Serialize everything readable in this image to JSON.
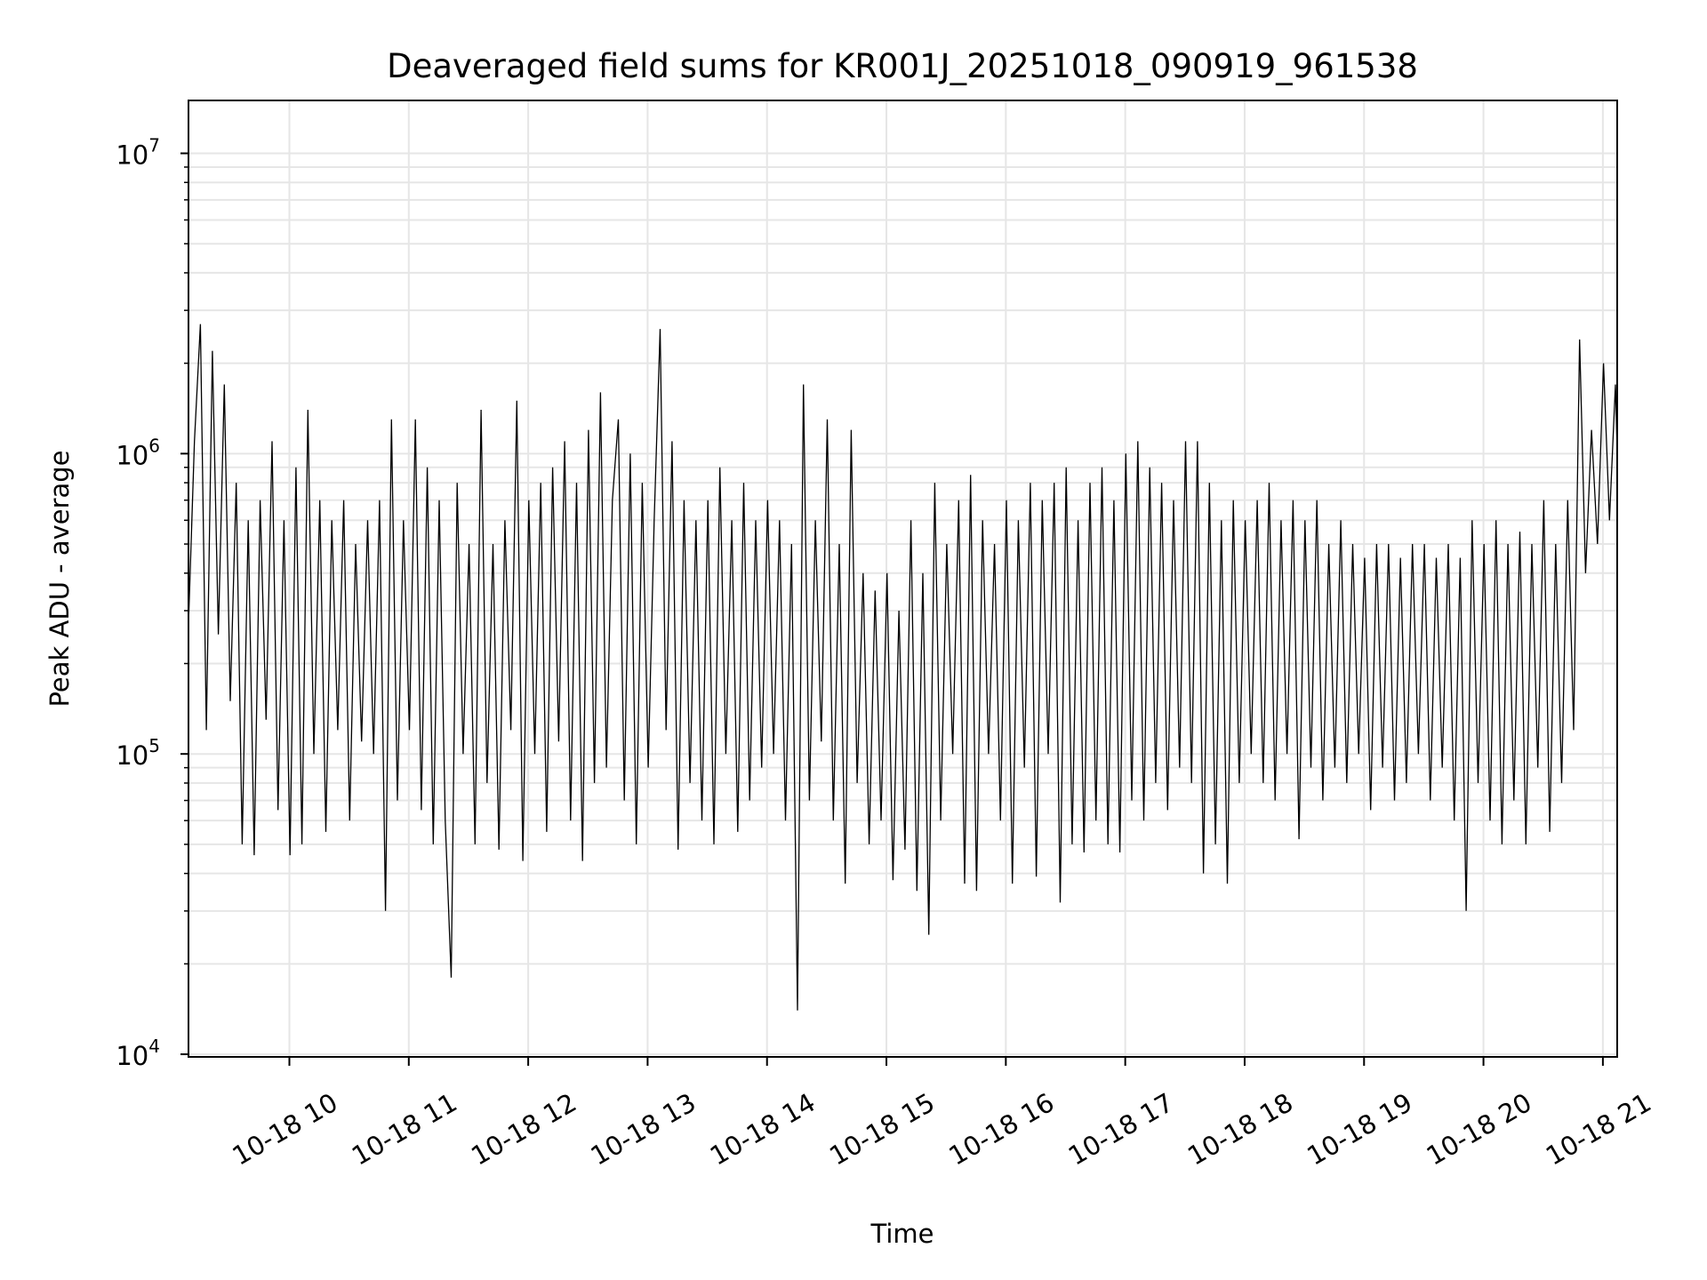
{
  "chart_data": {
    "type": "line",
    "title": "Deaveraged field sums for KR001J_20251018_090919_961538",
    "xlabel": "Time",
    "ylabel": "Peak ADU - average",
    "yscale": "log",
    "ylim": [
      9800,
      15000000
    ],
    "xlim_hours": [
      9.155,
      21.12
    ],
    "yticks": [
      {
        "exp": "4",
        "value": 10000
      },
      {
        "exp": "5",
        "value": 100000
      },
      {
        "exp": "6",
        "value": 1000000
      },
      {
        "exp": "7",
        "value": 10000000
      }
    ],
    "xticks": [
      {
        "hour": 10,
        "label": "10-18 10"
      },
      {
        "hour": 11,
        "label": "10-18 11"
      },
      {
        "hour": 12,
        "label": "10-18 12"
      },
      {
        "hour": 13,
        "label": "10-18 13"
      },
      {
        "hour": 14,
        "label": "10-18 14"
      },
      {
        "hour": 15,
        "label": "10-18 15"
      },
      {
        "hour": 16,
        "label": "10-18 16"
      },
      {
        "hour": 17,
        "label": "10-18 17"
      },
      {
        "hour": 18,
        "label": "10-18 18"
      },
      {
        "hour": 19,
        "label": "10-18 19"
      },
      {
        "hour": 20,
        "label": "10-18 20"
      },
      {
        "hour": 21,
        "label": "10-18 21"
      }
    ],
    "grid": true,
    "line_color": "#000000",
    "grid_color": "#e6e6e6",
    "series": [
      {
        "name": "deaveraged sum",
        "start_hour": 9.155,
        "step_minutes": 3,
        "values": [
          270000.0,
          1100000.0,
          2700000.0,
          120000.0,
          2200000.0,
          250000.0,
          1700000.0,
          150000.0,
          800000.0,
          50000.0,
          600000.0,
          46000.0,
          700000.0,
          130000.0,
          1100000.0,
          65000.0,
          600000.0,
          46000.0,
          900000.0,
          50000.0,
          1400000.0,
          100000.0,
          700000.0,
          55000.0,
          600000.0,
          120000.0,
          700000.0,
          60000.0,
          500000.0,
          110000.0,
          600000.0,
          100000.0,
          700000.0,
          30000.0,
          1300000.0,
          70000.0,
          600000.0,
          120000.0,
          1300000.0,
          65000.0,
          900000.0,
          50000.0,
          700000.0,
          60000.0,
          18000.0,
          800000.0,
          100000.0,
          500000.0,
          50000.0,
          1400000.0,
          80000.0,
          500000.0,
          48000.0,
          600000.0,
          120000.0,
          1500000.0,
          44000.0,
          700000.0,
          100000.0,
          800000.0,
          55000.0,
          900000.0,
          110000.0,
          1100000.0,
          60000.0,
          800000.0,
          44000.0,
          1200000.0,
          80000.0,
          1600000.0,
          90000.0,
          700000.0,
          1300000.0,
          70000.0,
          1000000.0,
          50000.0,
          800000.0,
          90000.0,
          600000.0,
          2600000.0,
          120000.0,
          1100000.0,
          48000.0,
          700000.0,
          80000.0,
          600000.0,
          60000.0,
          700000.0,
          50000.0,
          900000.0,
          100000.0,
          600000.0,
          55000.0,
          800000.0,
          70000.0,
          600000.0,
          90000.0,
          700000.0,
          100000.0,
          600000.0,
          60000.0,
          500000.0,
          14000.0,
          1700000.0,
          70000.0,
          600000.0,
          110000.0,
          1300000.0,
          60000.0,
          500000.0,
          37000.0,
          1200000.0,
          80000.0,
          400000.0,
          50000.0,
          350000.0,
          60000.0,
          400000.0,
          38000.0,
          300000.0,
          48000.0,
          600000.0,
          35000.0,
          400000.0,
          25000.0,
          800000.0,
          60000.0,
          500000.0,
          100000.0,
          700000.0,
          37000.0,
          850000.0,
          35000.0,
          600000.0,
          100000.0,
          500000.0,
          60000.0,
          700000.0,
          37000.0,
          600000.0,
          90000.0,
          800000.0,
          39000.0,
          700000.0,
          100000.0,
          800000.0,
          32000.0,
          900000.0,
          50000.0,
          600000.0,
          47000.0,
          800000.0,
          60000.0,
          900000.0,
          50000.0,
          700000.0,
          47000.0,
          1000000.0,
          70000.0,
          1100000.0,
          60000.0,
          900000.0,
          80000.0,
          800000.0,
          65000.0,
          700000.0,
          90000.0,
          1100000.0,
          80000.0,
          1100000.0,
          40000.0,
          800000.0,
          50000.0,
          600000.0,
          37000.0,
          700000.0,
          80000.0,
          600000.0,
          100000.0,
          700000.0,
          80000.0,
          800000.0,
          70000.0,
          600000.0,
          100000.0,
          700000.0,
          52000.0,
          600000.0,
          90000.0,
          700000.0,
          70000.0,
          500000.0,
          90000.0,
          600000.0,
          80000.0,
          500000.0,
          100000.0,
          450000.0,
          65000.0,
          500000.0,
          90000.0,
          500000.0,
          70000.0,
          450000.0,
          80000.0,
          500000.0,
          100000.0,
          500000.0,
          70000.0,
          450000.0,
          90000.0,
          500000.0,
          60000.0,
          450000.0,
          30000.0,
          600000.0,
          80000.0,
          500000.0,
          60000.0,
          600000.0,
          50000.0,
          500000.0,
          70000.0,
          550000.0,
          50000.0,
          500000.0,
          90000.0,
          700000.0,
          55000.0,
          500000.0,
          80000.0,
          700000.0,
          120000.0,
          2400000.0,
          400000.0,
          1200000.0,
          500000.0,
          2000000.0,
          600000.0,
          1700000.0,
          300000.0
        ]
      }
    ]
  }
}
